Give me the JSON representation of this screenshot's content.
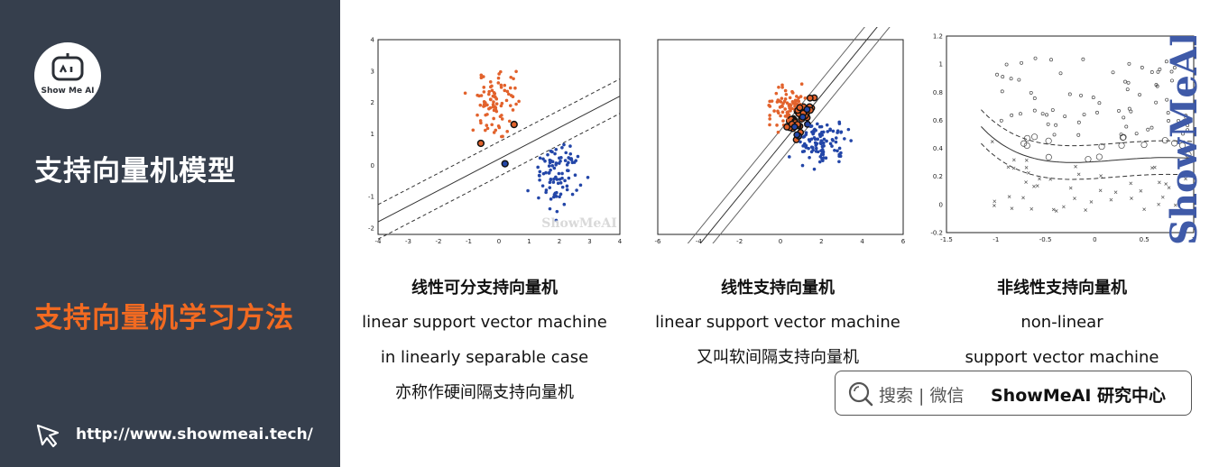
{
  "sidebar": {
    "logo_text": "Show Me AI",
    "title": "支持向量机模型",
    "subtitle": "支持向量机学习方法",
    "link": "http://www.showmeai.tech/"
  },
  "panels": [
    {
      "title": "线性可分支持向量机",
      "lines": [
        "linear support vector machine",
        "in linearly separable case",
        "亦称作硬间隔支持向量机"
      ]
    },
    {
      "title": "线性支持向量机",
      "lines": [
        "linear support vector machine",
        "又叫软间隔支持向量机"
      ]
    },
    {
      "title": "非线性支持向量机",
      "lines": [
        "non-linear",
        "support vector machine"
      ]
    }
  ],
  "search": {
    "hint": "搜索 | 微信",
    "brand": "ShowMeAI 研究中心"
  },
  "watermark": "ShowMeAI",
  "brand_vertical": "ShowMeAI",
  "colors": {
    "sidebar_bg": "#363f4d",
    "accent": "#f26a21",
    "class_a": "#e2622c",
    "class_b": "#2346a8"
  },
  "chart_data": [
    {
      "type": "scatter",
      "xlim": [
        -4,
        4
      ],
      "ylim": [
        -2.2,
        4
      ],
      "x_ticks": [
        "-4",
        "-3",
        "-2",
        "-1",
        "0",
        "1",
        "2",
        "3",
        "4"
      ],
      "y_ticks": [
        "-2",
        "-1",
        "0",
        "1",
        "2",
        "3",
        "4"
      ],
      "boundary": {
        "slope": 0.5,
        "intercept": 0.2,
        "margin": 0.55
      },
      "class_a_center": [
        0.0,
        2.0
      ],
      "class_b_center": [
        2.0,
        -0.2
      ]
    },
    {
      "type": "scatter",
      "xlim": [
        -6,
        6
      ],
      "ylim": [
        -3,
        4
      ],
      "x_ticks": [
        "-6",
        "-4",
        "-2",
        "0",
        "2",
        "4",
        "6"
      ],
      "boundary": {
        "slope": 0.9,
        "intercept": 0.2,
        "margin": 0.55
      },
      "class_a_center": [
        0.5,
        1.5
      ],
      "class_b_center": [
        2.0,
        0.3
      ]
    },
    {
      "type": "scatter",
      "xlim": [
        -1.5,
        1
      ],
      "ylim": [
        -0.2,
        1.2
      ],
      "x_ticks": [
        "-1.5",
        "-1",
        "-0.5",
        "0",
        "0.5",
        "1"
      ],
      "y_ticks": [
        "-0.2",
        "0",
        "0.2",
        "0.4",
        "0.6",
        "0.8",
        "1",
        "1.2"
      ]
    }
  ]
}
